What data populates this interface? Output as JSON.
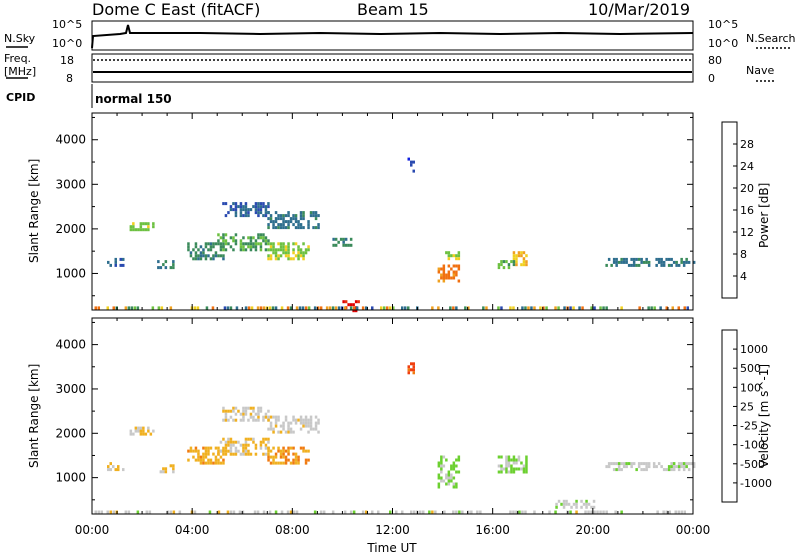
{
  "header": {
    "title": "Dome C East (fitACF)",
    "beam": "Beam 15",
    "date": "10/Mar/2019"
  },
  "top_panel": {
    "left_label": "N.Sky",
    "right_label": "N.Search",
    "left_ticks": [
      "10^5",
      "10^0"
    ],
    "right_ticks": [
      "10^5",
      "10^0"
    ]
  },
  "freq_panel": {
    "left_label_1": "Freq.",
    "left_label_2": "[MHz]",
    "right_label": "Nave",
    "left_ticks": [
      "18",
      "8"
    ],
    "right_ticks": [
      "80",
      "0"
    ]
  },
  "cpid": {
    "label": "CPID",
    "value": "normal 150"
  },
  "colors": {
    "power": [
      "#1020e0",
      "#2a4ab0",
      "#2e6e8e",
      "#3a8a5a",
      "#6cc040",
      "#f0d020",
      "#f0a020",
      "#f07010",
      "#e83010",
      "#e00000"
    ],
    "velocity": [
      "#e00000",
      "#f04010",
      "#f07a10",
      "#f0b020",
      "#c8c8c8",
      "#c8c8c8",
      "#6cd030",
      "#3a8a5a",
      "#2a5aa0",
      "#1a30c0"
    ]
  },
  "chart_data": [
    {
      "type": "heatmap",
      "title": "",
      "xlabel": "Time UT",
      "ylabel": "Slant Range [km]",
      "x_ticks": [
        "00:00",
        "04:00",
        "08:00",
        "12:00",
        "16:00",
        "20:00",
        "00:00"
      ],
      "xlim_hours": [
        0,
        24
      ],
      "y_ticks": [
        1000,
        2000,
        3000,
        4000
      ],
      "ylim_km": [
        180,
        4600
      ],
      "colorbar": {
        "label": "Power [dB]",
        "ticks": [
          "4",
          "8",
          "12",
          "16",
          "20",
          "24",
          "28"
        ],
        "range": [
          0,
          30
        ]
      },
      "regions": [
        {
          "t": [
            0.6,
            1.2
          ],
          "r": [
            1150,
            1350
          ],
          "v": 6
        },
        {
          "t": [
            1.5,
            2.4
          ],
          "r": [
            1950,
            2150
          ],
          "v": 14
        },
        {
          "t": [
            2.6,
            3.2
          ],
          "r": [
            1100,
            1300
          ],
          "v": 8
        },
        {
          "t": [
            3.8,
            5.2
          ],
          "r": [
            1300,
            1700
          ],
          "v": 10
        },
        {
          "t": [
            5.0,
            7.0
          ],
          "r": [
            1500,
            1900
          ],
          "v": 12
        },
        {
          "t": [
            7.0,
            8.6
          ],
          "r": [
            1300,
            1700
          ],
          "v": 14
        },
        {
          "t": [
            5.2,
            7.0
          ],
          "r": [
            2300,
            2600
          ],
          "v": 6
        },
        {
          "t": [
            7.0,
            9.0
          ],
          "r": [
            2000,
            2400
          ],
          "v": 8
        },
        {
          "t": [
            9.6,
            10.3
          ],
          "r": [
            1600,
            1800
          ],
          "v": 10
        },
        {
          "t": [
            10.0,
            10.6
          ],
          "r": [
            180,
            400
          ],
          "v": 28
        },
        {
          "t": [
            13.8,
            14.6
          ],
          "r": [
            800,
            1200
          ],
          "v": 22
        },
        {
          "t": [
            14.1,
            14.6
          ],
          "r": [
            1300,
            1500
          ],
          "v": 14
        },
        {
          "t": [
            16.8,
            17.3
          ],
          "r": [
            1200,
            1500
          ],
          "v": 18
        },
        {
          "t": [
            16.2,
            16.8
          ],
          "r": [
            1100,
            1300
          ],
          "v": 12
        },
        {
          "t": [
            20.5,
            24.0
          ],
          "r": [
            1200,
            1350
          ],
          "v": 8
        },
        {
          "t": [
            12.6,
            12.8
          ],
          "r": [
            3300,
            3600
          ],
          "v": 4
        }
      ]
    },
    {
      "type": "heatmap",
      "title": "",
      "xlabel": "Time UT",
      "ylabel": "Slant Range [km]",
      "x_ticks": [
        "00:00",
        "04:00",
        "08:00",
        "12:00",
        "16:00",
        "20:00",
        "00:00"
      ],
      "xlim_hours": [
        0,
        24
      ],
      "y_ticks": [
        1000,
        2000,
        3000,
        4000
      ],
      "ylim_km": [
        180,
        4600
      ],
      "colorbar": {
        "label": "Velocity [m s^-1]",
        "ticks": [
          "-1000",
          "-500",
          "-100",
          "-25",
          "25",
          "100",
          "500",
          "1000"
        ],
        "range": [
          -1200,
          1200
        ]
      },
      "regions": [
        {
          "t": [
            0.6,
            1.2
          ],
          "r": [
            1150,
            1350
          ],
          "v": -300
        },
        {
          "t": [
            1.5,
            2.4
          ],
          "r": [
            1950,
            2150
          ],
          "v": -200
        },
        {
          "t": [
            2.6,
            3.2
          ],
          "r": [
            1100,
            1300
          ],
          "v": -300
        },
        {
          "t": [
            3.8,
            5.2
          ],
          "r": [
            1300,
            1700
          ],
          "v": -400
        },
        {
          "t": [
            5.0,
            7.0
          ],
          "r": [
            1500,
            1900
          ],
          "v": -300
        },
        {
          "t": [
            7.0,
            8.6
          ],
          "r": [
            1300,
            1700
          ],
          "v": -500
        },
        {
          "t": [
            5.2,
            7.0
          ],
          "r": [
            2300,
            2600
          ],
          "v": -200
        },
        {
          "t": [
            7.0,
            9.0
          ],
          "r": [
            2000,
            2400
          ],
          "v": -150
        },
        {
          "t": [
            13.8,
            14.6
          ],
          "r": [
            800,
            1500
          ],
          "v": 300
        },
        {
          "t": [
            16.2,
            17.3
          ],
          "r": [
            1100,
            1500
          ],
          "v": 250
        },
        {
          "t": [
            20.5,
            24.0
          ],
          "r": [
            1200,
            1350
          ],
          "v": 150
        },
        {
          "t": [
            18.5,
            20.0
          ],
          "r": [
            300,
            500
          ],
          "v": 120
        },
        {
          "t": [
            12.6,
            12.8
          ],
          "r": [
            3300,
            3600
          ],
          "v": -800
        }
      ]
    }
  ]
}
